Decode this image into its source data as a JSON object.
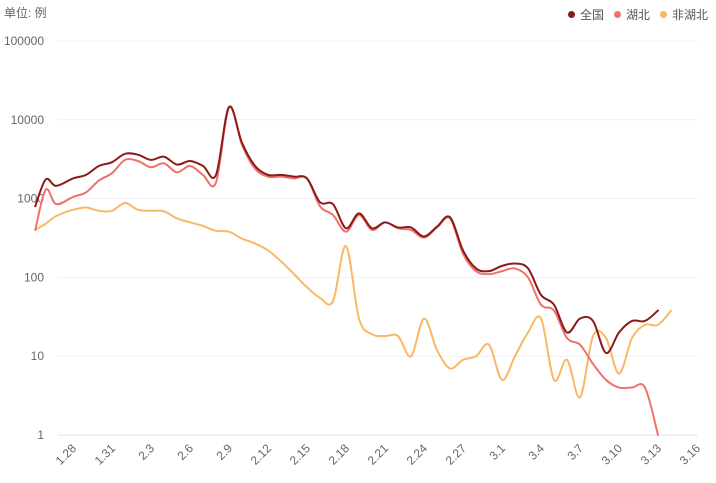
{
  "unit_label": "单位: 例",
  "chart_data": {
    "type": "line",
    "yscale": "log",
    "ylim": [
      1,
      100000
    ],
    "yticks": [
      1,
      10,
      100,
      1000,
      10000,
      100000
    ],
    "ytick_labels": [
      "1",
      "10",
      "100",
      "1000",
      "10000",
      "100000"
    ],
    "xtick_labels": [
      "1.28",
      "1.31",
      "2.3",
      "2.6",
      "2.9",
      "2.12",
      "2.15",
      "2.18",
      "2.21",
      "2.24",
      "2.27",
      "3.1",
      "3.4",
      "3.7",
      "3.10",
      "3.13",
      "3.16"
    ],
    "legend_position": "top-right",
    "grid": "horizontal",
    "series": [
      {
        "name": "全国",
        "color": "#8b1a1a",
        "points": [
          [
            -2.9,
            800
          ],
          [
            -2.1,
            1750
          ],
          [
            -1.3,
            1450
          ],
          [
            0,
            1800
          ],
          [
            1,
            2000
          ],
          [
            2,
            2600
          ],
          [
            3,
            2900
          ],
          [
            4,
            3700
          ],
          [
            5,
            3600
          ],
          [
            6,
            3100
          ],
          [
            7,
            3400
          ],
          [
            8,
            2700
          ],
          [
            9,
            3000
          ],
          [
            10,
            2600
          ],
          [
            11,
            2000
          ],
          [
            12,
            14500
          ],
          [
            13,
            5100
          ],
          [
            14,
            2600
          ],
          [
            15,
            2000
          ],
          [
            16,
            2000
          ],
          [
            17,
            1900
          ],
          [
            18,
            1800
          ],
          [
            19,
            900
          ],
          [
            20,
            850
          ],
          [
            21,
            420
          ],
          [
            22,
            650
          ],
          [
            23,
            420
          ],
          [
            24,
            500
          ],
          [
            25,
            430
          ],
          [
            26,
            430
          ],
          [
            27,
            330
          ],
          [
            28,
            440
          ],
          [
            29,
            580
          ],
          [
            30,
            220
          ],
          [
            31,
            130
          ],
          [
            32,
            120
          ],
          [
            33,
            140
          ],
          [
            34,
            150
          ],
          [
            35,
            130
          ],
          [
            36,
            60
          ],
          [
            37,
            45
          ],
          [
            38,
            20
          ],
          [
            39,
            30
          ],
          [
            40,
            28
          ],
          [
            41,
            11
          ],
          [
            42,
            20
          ],
          [
            43,
            28
          ],
          [
            44,
            28
          ],
          [
            45,
            38
          ]
        ]
      },
      {
        "name": "湖北",
        "color": "#f0706a",
        "points": [
          [
            -2.9,
            400
          ],
          [
            -2.1,
            1300
          ],
          [
            -1.3,
            850
          ],
          [
            0,
            1050
          ],
          [
            1,
            1200
          ],
          [
            2,
            1700
          ],
          [
            3,
            2100
          ],
          [
            4,
            3100
          ],
          [
            5,
            3000
          ],
          [
            6,
            2500
          ],
          [
            7,
            2800
          ],
          [
            8,
            2150
          ],
          [
            9,
            2600
          ],
          [
            10,
            2000
          ],
          [
            11,
            1600
          ],
          [
            12,
            14500
          ],
          [
            13,
            4800
          ],
          [
            14,
            2400
          ],
          [
            15,
            1900
          ],
          [
            16,
            1900
          ],
          [
            17,
            1800
          ],
          [
            18,
            1800
          ],
          [
            19,
            800
          ],
          [
            20,
            620
          ],
          [
            21,
            380
          ],
          [
            22,
            620
          ],
          [
            23,
            400
          ],
          [
            24,
            500
          ],
          [
            25,
            420
          ],
          [
            26,
            400
          ],
          [
            27,
            320
          ],
          [
            28,
            430
          ],
          [
            29,
            560
          ],
          [
            30,
            200
          ],
          [
            31,
            120
          ],
          [
            32,
            110
          ],
          [
            33,
            120
          ],
          [
            34,
            130
          ],
          [
            35,
            100
          ],
          [
            36,
            45
          ],
          [
            37,
            38
          ],
          [
            38,
            17
          ],
          [
            39,
            14
          ],
          [
            40,
            8
          ],
          [
            41,
            5
          ],
          [
            42,
            4
          ],
          [
            43,
            4
          ],
          [
            44,
            4
          ],
          [
            45,
            1
          ]
        ]
      },
      {
        "name": "非湖北",
        "color": "#f9b865",
        "points": [
          [
            -2.9,
            400
          ],
          [
            -2.1,
            480
          ],
          [
            -1.3,
            600
          ],
          [
            0,
            720
          ],
          [
            1,
            770
          ],
          [
            2,
            700
          ],
          [
            3,
            700
          ],
          [
            4,
            880
          ],
          [
            5,
            720
          ],
          [
            6,
            700
          ],
          [
            7,
            690
          ],
          [
            8,
            560
          ],
          [
            9,
            500
          ],
          [
            10,
            450
          ],
          [
            11,
            390
          ],
          [
            12,
            380
          ],
          [
            13,
            310
          ],
          [
            14,
            270
          ],
          [
            15,
            220
          ],
          [
            16,
            160
          ],
          [
            17,
            110
          ],
          [
            18,
            75
          ],
          [
            19,
            55
          ],
          [
            20,
            50
          ],
          [
            21,
            250
          ],
          [
            22,
            30
          ],
          [
            23,
            19
          ],
          [
            24,
            18
          ],
          [
            25,
            18
          ],
          [
            26,
            10
          ],
          [
            27,
            30
          ],
          [
            28,
            12
          ],
          [
            29,
            7
          ],
          [
            30,
            9
          ],
          [
            31,
            10
          ],
          [
            32,
            14
          ],
          [
            33,
            5
          ],
          [
            34,
            10
          ],
          [
            35,
            20
          ],
          [
            36,
            30
          ],
          [
            37,
            5
          ],
          [
            38,
            9
          ],
          [
            39,
            3
          ],
          [
            40,
            18
          ],
          [
            41,
            17
          ],
          [
            42,
            6
          ],
          [
            43,
            17
          ],
          [
            44,
            25
          ],
          [
            45,
            25
          ],
          [
            46,
            38
          ]
        ]
      }
    ]
  }
}
